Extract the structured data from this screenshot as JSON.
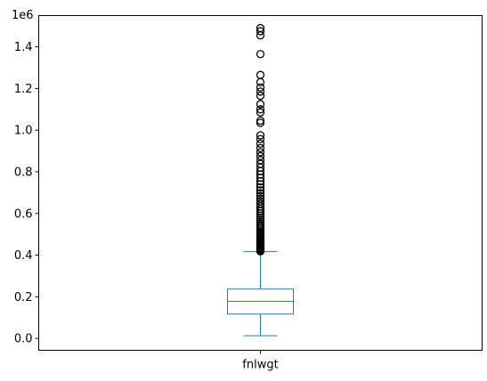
{
  "chart_data": {
    "type": "box",
    "title": "",
    "xlabel": "",
    "ylabel": "",
    "categories": [
      "fnlwgt"
    ],
    "y_scale_label": "1e6",
    "ylim": [
      -0.057,
      1.55
    ],
    "yticks": [
      0.0,
      0.2,
      0.4,
      0.6,
      0.8,
      1.0,
      1.2,
      1.4
    ],
    "ytick_labels": [
      "0.0",
      "0.2",
      "0.4",
      "0.6",
      "0.8",
      "1.0",
      "1.2",
      "1.4"
    ],
    "grid": false,
    "colors": {
      "box": "#1f77b4",
      "median": "#2ca02c",
      "outlier": "#000000"
    },
    "box": {
      "whisker_low": 0.013,
      "q1": 0.117,
      "median": 0.178,
      "q3": 0.237,
      "whisker_high": 0.417
    },
    "outliers": [
      0.418,
      0.421,
      0.424,
      0.427,
      0.43,
      0.433,
      0.436,
      0.44,
      0.444,
      0.448,
      0.452,
      0.456,
      0.46,
      0.465,
      0.47,
      0.475,
      0.48,
      0.486,
      0.492,
      0.498,
      0.505,
      0.512,
      0.519,
      0.527,
      0.535,
      0.543,
      0.552,
      0.561,
      0.57,
      0.58,
      0.59,
      0.6,
      0.611,
      0.622,
      0.634,
      0.646,
      0.658,
      0.671,
      0.684,
      0.697,
      0.711,
      0.725,
      0.74,
      0.755,
      0.771,
      0.787,
      0.803,
      0.82,
      0.838,
      0.856,
      0.875,
      0.894,
      0.914,
      0.935,
      0.957,
      0.975,
      1.035,
      1.045,
      1.085,
      1.1,
      1.125,
      1.165,
      1.185,
      1.205,
      1.23,
      1.265,
      1.365,
      1.455,
      1.475,
      1.49
    ]
  }
}
